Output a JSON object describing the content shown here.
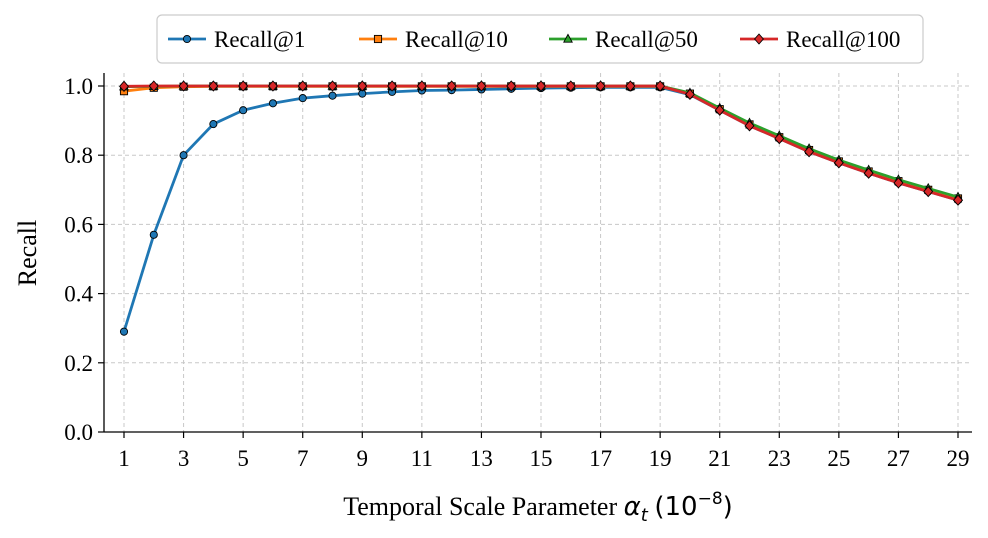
{
  "chart_data": {
    "type": "line",
    "title": "",
    "xlabel_prefix": "Temporal Scale Parameter",
    "xlabel_math": "α",
    "xlabel_sub": "t",
    "xlabel_unit_open": "(10",
    "xlabel_unit_exp": "−8",
    "xlabel_unit_close": ")",
    "ylabel": "Recall",
    "xlim": [
      0.6,
      29.5
    ],
    "ylim": [
      0.0,
      1.03
    ],
    "xticks": [
      1,
      3,
      5,
      7,
      9,
      11,
      13,
      15,
      17,
      19,
      21,
      23,
      25,
      27,
      29
    ],
    "yticks": [
      0.0,
      0.2,
      0.4,
      0.6,
      0.8,
      1.0
    ],
    "grid": true,
    "legend_position": "top-center",
    "x": [
      1,
      2,
      3,
      4,
      5,
      6,
      7,
      8,
      9,
      10,
      11,
      12,
      13,
      14,
      15,
      16,
      17,
      18,
      19,
      20,
      21,
      22,
      23,
      24,
      25,
      26,
      27,
      28,
      29
    ],
    "series": [
      {
        "name": "Recall@1",
        "color": "#1f77b4",
        "marker": "circle",
        "values": [
          0.29,
          0.57,
          0.8,
          0.89,
          0.93,
          0.95,
          0.965,
          0.972,
          0.978,
          0.983,
          0.987,
          0.988,
          0.99,
          0.992,
          0.994,
          0.995,
          0.996,
          0.996,
          0.996,
          0.975,
          0.93,
          0.885,
          0.848,
          0.81,
          0.778,
          0.748,
          0.72,
          0.695,
          0.67
        ]
      },
      {
        "name": "Recall@10",
        "color": "#ff7f0e",
        "marker": "square",
        "values": [
          0.985,
          0.995,
          0.998,
          0.999,
          0.999,
          0.999,
          0.999,
          0.999,
          0.999,
          0.999,
          0.999,
          0.999,
          0.999,
          0.999,
          0.999,
          0.999,
          0.999,
          0.999,
          0.999,
          0.978,
          0.933,
          0.889,
          0.852,
          0.815,
          0.782,
          0.753,
          0.725,
          0.7,
          0.675
        ]
      },
      {
        "name": "Recall@50",
        "color": "#2ca02c",
        "marker": "triangle",
        "values": [
          0.998,
          0.999,
          1.0,
          1.0,
          1.0,
          1.0,
          1.0,
          1.0,
          1.0,
          1.0,
          1.0,
          1.0,
          1.0,
          1.0,
          1.0,
          1.0,
          1.0,
          1.0,
          1.0,
          0.98,
          0.936,
          0.893,
          0.856,
          0.819,
          0.786,
          0.757,
          0.729,
          0.704,
          0.679
        ]
      },
      {
        "name": "Recall@100",
        "color": "#d62728",
        "marker": "diamond",
        "values": [
          0.999,
          1.0,
          1.0,
          1.0,
          1.0,
          1.0,
          1.0,
          1.0,
          1.0,
          1.0,
          1.0,
          1.0,
          1.0,
          1.0,
          1.0,
          1.0,
          1.0,
          1.0,
          1.0,
          0.976,
          0.93,
          0.885,
          0.848,
          0.81,
          0.778,
          0.748,
          0.72,
          0.695,
          0.67
        ]
      }
    ]
  }
}
